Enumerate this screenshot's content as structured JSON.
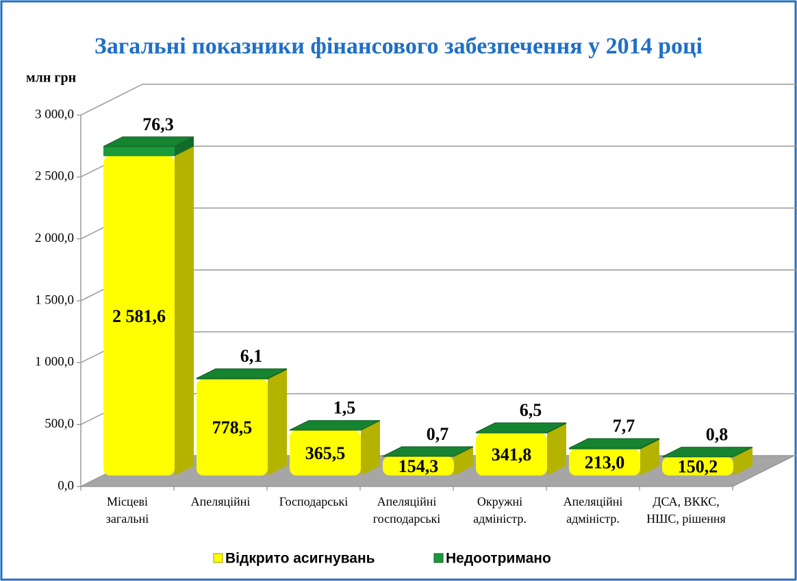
{
  "chart_data": {
    "type": "bar3d_stacked",
    "title": "Загальні показники фінансового забезпечення у 2014 році",
    "y_label": "млн грн",
    "categories": [
      [
        "Місцеві",
        "загальні"
      ],
      [
        "Апеляційні"
      ],
      [
        "Господарські"
      ],
      [
        "Апеляційні",
        "господарські"
      ],
      [
        "Окружні",
        "адміністр."
      ],
      [
        "Апеляційні",
        "адміністр."
      ],
      [
        "ДСА, ВККС,",
        "НШС, рішення"
      ]
    ],
    "series": [
      {
        "name": "Відкрито асигнувань",
        "color": "#ffff00",
        "values": [
          2581.6,
          778.5,
          365.5,
          154.3,
          341.8,
          213.0,
          150.2
        ],
        "value_labels": [
          "2 581,6",
          "778,5",
          "365,5",
          "154,3",
          "341,8",
          "213,0",
          "150,2"
        ]
      },
      {
        "name": "Недоотримано",
        "color": "#1a9a3a",
        "values": [
          76.3,
          6.1,
          1.5,
          0.7,
          6.5,
          7.7,
          0.8
        ],
        "value_labels": [
          "76,3",
          "6,1",
          "1,5",
          "0,7",
          "6,5",
          "7,7",
          "0,8"
        ]
      }
    ],
    "ylim": [
      0,
      3000
    ],
    "yticks": [
      {
        "value": 0,
        "label": "0,0"
      },
      {
        "value": 500,
        "label": "500,0"
      },
      {
        "value": 1000,
        "label": "1 000,0"
      },
      {
        "value": 1500,
        "label": "1 500,0"
      },
      {
        "value": 2000,
        "label": "2 000,0"
      },
      {
        "value": 2500,
        "label": "2 500,0"
      },
      {
        "value": 3000,
        "label": "3 000,0"
      }
    ],
    "grid": true,
    "legend": "bottom"
  }
}
